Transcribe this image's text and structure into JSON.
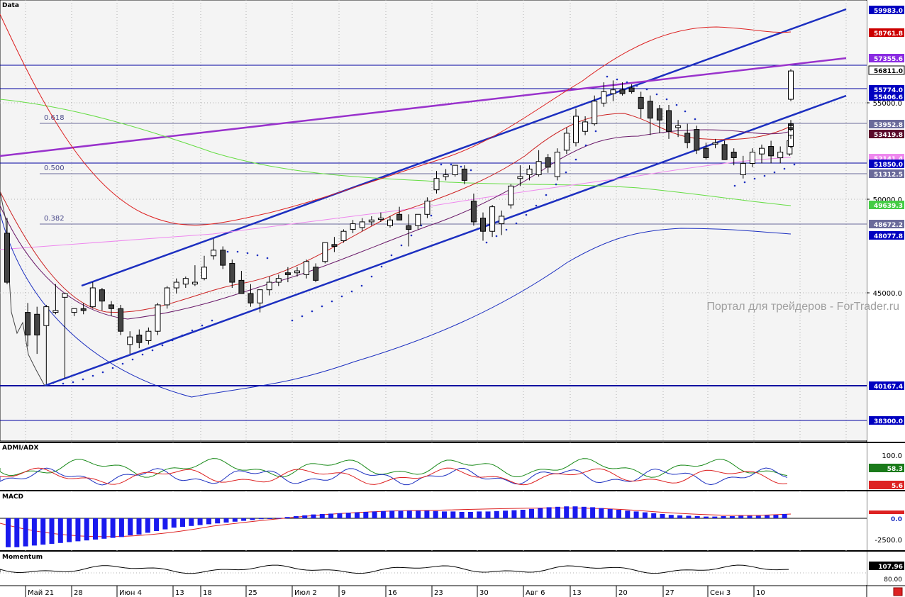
{
  "watermark": "Портал для трейдеров - ForTrader.ru",
  "panels": {
    "main": "Data",
    "adx": "ADMI/ADX",
    "macd": "MACD",
    "momentum": "Momentum"
  },
  "chart_data": {
    "type": "candlestick",
    "x_axis_labels": [
      "Май 21",
      "28",
      "Июн 4",
      "13",
      "18",
      "25",
      "Июл 2",
      "9",
      "16",
      "23",
      "30",
      "Авг 6",
      "13",
      "20",
      "27",
      "Сен 3",
      "10"
    ],
    "price_scale_ticks": [
      "55000.0",
      "50000.0",
      "45000.0"
    ],
    "fib_levels": [
      {
        "label": "0.618",
        "price": 53952.8
      },
      {
        "label": "0.500",
        "price": 51312.5
      },
      {
        "label": "0.382",
        "price": 48672.2
      }
    ],
    "price_tags": [
      {
        "value": "59983.0",
        "color": "#0000c0"
      },
      {
        "value": "58761.8",
        "color": "#cc0000"
      },
      {
        "value": "57355.6",
        "color": "#8a2be2"
      },
      {
        "value": "56811.0",
        "color": "#000000"
      },
      {
        "value": "55774.0",
        "color": "#0000c0"
      },
      {
        "value": "55406.6",
        "color": "#0000c0"
      },
      {
        "value": "53952.8",
        "color": "#6a6a9a"
      },
      {
        "value": "53419.8",
        "color": "#5a0a2a"
      },
      {
        "value": "52141.4",
        "color": "#ee88ee"
      },
      {
        "value": "51850.0",
        "color": "#0000c0"
      },
      {
        "value": "51312.5",
        "color": "#6a6a9a"
      },
      {
        "value": "49639.3",
        "color": "#44cc44"
      },
      {
        "value": "48672.2",
        "color": "#6a6a9a"
      },
      {
        "value": "48077.8",
        "color": "#0000c0"
      },
      {
        "value": "40167.4",
        "color": "#0000c0"
      },
      {
        "value": "38300.0",
        "color": "#0000c0"
      }
    ],
    "candles": [
      {
        "o": 48200,
        "h": 49000,
        "l": 45500,
        "c": 45600
      },
      {
        "o": 44000,
        "h": 44500,
        "l": 42200,
        "c": 42800
      },
      {
        "o": 43900,
        "h": 44300,
        "l": 41800,
        "c": 42800
      },
      {
        "o": 43300,
        "h": 44400,
        "l": 40200,
        "c": 44300
      },
      {
        "o": 44000,
        "h": 45500,
        "l": 43900,
        "c": 44100
      },
      {
        "o": 44800,
        "h": 45000,
        "l": 40500,
        "c": 45000
      },
      {
        "o": 44000,
        "h": 44200,
        "l": 43800,
        "c": 44200
      },
      {
        "o": 44200,
        "h": 44500,
        "l": 43900,
        "c": 44100
      },
      {
        "o": 44300,
        "h": 45600,
        "l": 44200,
        "c": 45300
      },
      {
        "o": 45200,
        "h": 45300,
        "l": 44100,
        "c": 44600
      },
      {
        "o": 44400,
        "h": 44600,
        "l": 43800,
        "c": 44200
      },
      {
        "o": 44200,
        "h": 44400,
        "l": 42800,
        "c": 43000
      },
      {
        "o": 42300,
        "h": 43000,
        "l": 41800,
        "c": 42700
      },
      {
        "o": 42800,
        "h": 43100,
        "l": 42100,
        "c": 42400
      },
      {
        "o": 42500,
        "h": 43200,
        "l": 42300,
        "c": 43000
      },
      {
        "o": 43000,
        "h": 44500,
        "l": 42800,
        "c": 44400
      },
      {
        "o": 44400,
        "h": 45400,
        "l": 44200,
        "c": 45300
      },
      {
        "o": 45300,
        "h": 45800,
        "l": 45000,
        "c": 45600
      },
      {
        "o": 45500,
        "h": 45900,
        "l": 45300,
        "c": 45800
      },
      {
        "o": 45500,
        "h": 46500,
        "l": 45400,
        "c": 45600
      },
      {
        "o": 45800,
        "h": 47000,
        "l": 45700,
        "c": 46400
      },
      {
        "o": 47000,
        "h": 47900,
        "l": 46800,
        "c": 47300
      },
      {
        "o": 47300,
        "h": 47500,
        "l": 46300,
        "c": 46500
      },
      {
        "o": 46600,
        "h": 46800,
        "l": 45300,
        "c": 45600
      },
      {
        "o": 45700,
        "h": 46200,
        "l": 45000,
        "c": 45000
      },
      {
        "o": 45000,
        "h": 45500,
        "l": 44300,
        "c": 44500
      },
      {
        "o": 44500,
        "h": 45200,
        "l": 44000,
        "c": 45200
      },
      {
        "o": 45200,
        "h": 45900,
        "l": 44900,
        "c": 45600
      },
      {
        "o": 45600,
        "h": 46000,
        "l": 45400,
        "c": 45800
      },
      {
        "o": 46100,
        "h": 46400,
        "l": 45600,
        "c": 46000
      },
      {
        "o": 46100,
        "h": 46400,
        "l": 45900,
        "c": 46200
      },
      {
        "o": 46000,
        "h": 46800,
        "l": 45800,
        "c": 46700
      },
      {
        "o": 46400,
        "h": 46600,
        "l": 45600,
        "c": 45700
      },
      {
        "o": 46700,
        "h": 47700,
        "l": 46600,
        "c": 47700
      },
      {
        "o": 47600,
        "h": 48000,
        "l": 47200,
        "c": 47500
      },
      {
        "o": 47800,
        "h": 48400,
        "l": 47700,
        "c": 48300
      },
      {
        "o": 48400,
        "h": 48900,
        "l": 48200,
        "c": 48700
      },
      {
        "o": 48500,
        "h": 49000,
        "l": 48300,
        "c": 48800
      },
      {
        "o": 48800,
        "h": 49100,
        "l": 48600,
        "c": 48900
      },
      {
        "o": 49000,
        "h": 49300,
        "l": 48800,
        "c": 49000
      },
      {
        "o": 48600,
        "h": 49100,
        "l": 48500,
        "c": 48900
      },
      {
        "o": 49200,
        "h": 49600,
        "l": 48900,
        "c": 48900
      },
      {
        "o": 48600,
        "h": 49200,
        "l": 47500,
        "c": 48400
      },
      {
        "o": 48600,
        "h": 49200,
        "l": 48400,
        "c": 49200
      },
      {
        "o": 49200,
        "h": 50100,
        "l": 49000,
        "c": 49900
      },
      {
        "o": 50500,
        "h": 51500,
        "l": 50300,
        "c": 51100
      },
      {
        "o": 51200,
        "h": 51600,
        "l": 51000,
        "c": 51300
      },
      {
        "o": 51300,
        "h": 51800,
        "l": 51200,
        "c": 51800
      },
      {
        "o": 51600,
        "h": 51800,
        "l": 50800,
        "c": 51000
      },
      {
        "o": 49900,
        "h": 50300,
        "l": 48600,
        "c": 48800
      },
      {
        "o": 49000,
        "h": 49300,
        "l": 47800,
        "c": 48300
      },
      {
        "o": 48300,
        "h": 49700,
        "l": 48000,
        "c": 49600
      },
      {
        "o": 48700,
        "h": 49400,
        "l": 48100,
        "c": 49100
      },
      {
        "o": 49700,
        "h": 50800,
        "l": 49500,
        "c": 50700
      },
      {
        "o": 51100,
        "h": 51800,
        "l": 50700,
        "c": 51200
      },
      {
        "o": 51300,
        "h": 51800,
        "l": 51000,
        "c": 51600
      },
      {
        "o": 51300,
        "h": 52600,
        "l": 51200,
        "c": 52000
      },
      {
        "o": 52200,
        "h": 52400,
        "l": 51400,
        "c": 51700
      },
      {
        "o": 51200,
        "h": 52700,
        "l": 51000,
        "c": 52500
      },
      {
        "o": 52600,
        "h": 53800,
        "l": 52400,
        "c": 53500
      },
      {
        "o": 53000,
        "h": 54800,
        "l": 52800,
        "c": 54400
      },
      {
        "o": 53600,
        "h": 54400,
        "l": 53400,
        "c": 54100
      },
      {
        "o": 54000,
        "h": 55500,
        "l": 53900,
        "c": 55200
      },
      {
        "o": 55100,
        "h": 56200,
        "l": 54900,
        "c": 55700
      },
      {
        "o": 55600,
        "h": 56300,
        "l": 55200,
        "c": 55800
      },
      {
        "o": 55800,
        "h": 56200,
        "l": 55500,
        "c": 55600
      },
      {
        "o": 55900,
        "h": 56100,
        "l": 55600,
        "c": 55700
      },
      {
        "o": 55400,
        "h": 55700,
        "l": 54300,
        "c": 54800
      },
      {
        "o": 55200,
        "h": 55500,
        "l": 53400,
        "c": 54300
      },
      {
        "o": 54800,
        "h": 55000,
        "l": 53500,
        "c": 54200
      },
      {
        "o": 54700,
        "h": 55000,
        "l": 53200,
        "c": 53600
      },
      {
        "o": 53800,
        "h": 54200,
        "l": 53300,
        "c": 53900
      },
      {
        "o": 53500,
        "h": 54000,
        "l": 52700,
        "c": 53000
      },
      {
        "o": 53700,
        "h": 53900,
        "l": 52400,
        "c": 52600
      },
      {
        "o": 52700,
        "h": 53000,
        "l": 52100,
        "c": 52200
      },
      {
        "o": 53000,
        "h": 53200,
        "l": 52700,
        "c": 53000
      },
      {
        "o": 52900,
        "h": 53100,
        "l": 52100,
        "c": 52100
      },
      {
        "o": 52500,
        "h": 52700,
        "l": 51800,
        "c": 52200
      },
      {
        "o": 51300,
        "h": 52300,
        "l": 51100,
        "c": 51900
      },
      {
        "o": 51900,
        "h": 52700,
        "l": 51700,
        "c": 52500
      },
      {
        "o": 52400,
        "h": 52900,
        "l": 51900,
        "c": 52700
      },
      {
        "o": 52800,
        "h": 53100,
        "l": 51900,
        "c": 52300
      },
      {
        "o": 52200,
        "h": 52800,
        "l": 51900,
        "c": 52500
      },
      {
        "o": 52400,
        "h": 53400,
        "l": 52300,
        "c": 53100
      },
      {
        "o": 53200,
        "h": 54100,
        "l": 53000,
        "c": 53800
      },
      {
        "o": 54000,
        "h": 54100,
        "l": 53200,
        "c": 53100
      },
      {
        "o": 52800,
        "h": 53500,
        "l": 52700,
        "c": 53400
      },
      {
        "o": 53400,
        "h": 54100,
        "l": 53200,
        "c": 53900
      },
      {
        "o": 53800,
        "h": 54200,
        "l": 53600,
        "c": 53700
      },
      {
        "o": 55300,
        "h": 56900,
        "l": 55200,
        "c": 56800
      }
    ],
    "adx": {
      "labels": [
        "100.0"
      ],
      "values": [
        58.3,
        5.6
      ]
    },
    "macd": {
      "labels": [
        "0.0",
        "-2500.0"
      ],
      "histogram": [
        -3400,
        -3400,
        -3300,
        -3200,
        -3100,
        -3000,
        -2900,
        -2800,
        -2700,
        -2600,
        -2500,
        -2400,
        -2300,
        -2200,
        -2000,
        -1900,
        -1700,
        -1500,
        -1300,
        -1100,
        -1000,
        -900,
        -800,
        -700,
        -600,
        -500,
        -400,
        -300,
        -200,
        -100,
        -50,
        50,
        150,
        250,
        350,
        450,
        500,
        550,
        600,
        650,
        700,
        750,
        800,
        850,
        900,
        900,
        900,
        900,
        900,
        850,
        800,
        800,
        750,
        750,
        800,
        800,
        850,
        900,
        950,
        1000,
        1100,
        1200,
        1300,
        1350,
        1400,
        1400,
        1350,
        1300,
        1200,
        1100,
        1000,
        900,
        800,
        700,
        600,
        500,
        400,
        350,
        300,
        250,
        200,
        200,
        250,
        250,
        300,
        300,
        300,
        350,
        400,
        500
      ]
    },
    "momentum": {
      "labels": [
        "107.96",
        "80.00"
      ]
    }
  }
}
